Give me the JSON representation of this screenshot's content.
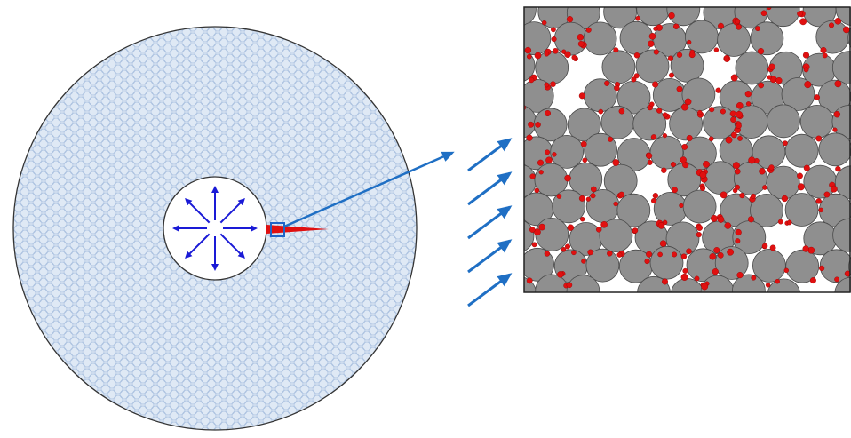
{
  "figure": {
    "colors": {
      "background": "#ffffff",
      "outer_fill": "#dfe9f5",
      "mesh_stroke": "#a9c0df",
      "outline": "#333333",
      "wellbore_fill": "#ffffff",
      "pressure_arrows": "#1a1ad6",
      "fracture": "#e01010",
      "zoom_box": "#1f64c8",
      "callout": "#1f6fc4",
      "flow_arrows": "#1f6fc4",
      "grain_fill": "#8f8f8f",
      "grain_stroke": "#4a4a4a",
      "fines": "#e01010",
      "inset_border": "#222222"
    },
    "pressure_arrow_count": 8,
    "flow_arrow_count": 5,
    "icons": [
      "pressure-arrow-icon",
      "flow-arrow-icon"
    ]
  }
}
